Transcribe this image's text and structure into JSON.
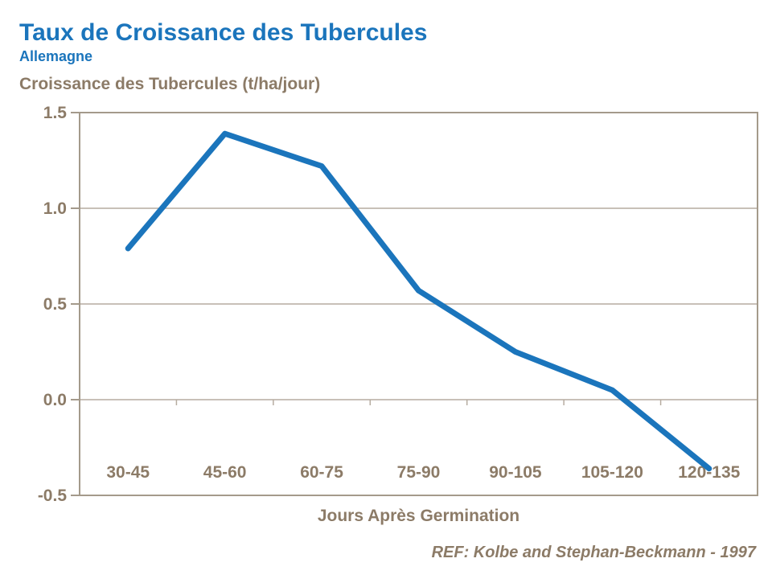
{
  "header": {
    "title": "Taux de Croissance des Tubercules",
    "subtitle": "Allemagne"
  },
  "footer": {
    "reference": "REF: Kolbe and Stephan-Beckmann - 1997"
  },
  "colors": {
    "accent_blue": "#1b75bc",
    "line_blue": "#1b75bc",
    "text_brown": "#8c7b67",
    "gridline": "#b6aca0",
    "axis_border": "#a49a8b"
  },
  "chart_data": {
    "type": "line",
    "title": "Taux de Croissance des Tubercules",
    "subtitle": "Allemagne",
    "ylabel": "Croissance des Tubercules (t/ha/jour)",
    "xlabel": "Jours Après Germination",
    "categories": [
      "30-45",
      "45-60",
      "60-75",
      "75-90",
      "90-105",
      "105-120",
      "120-135"
    ],
    "series": [
      {
        "name": "Croissance des Tubercules",
        "values": [
          0.79,
          1.39,
          1.22,
          0.57,
          0.25,
          0.05,
          -0.36
        ]
      }
    ],
    "ylim": [
      -0.5,
      1.5
    ],
    "yticks": [
      -0.5,
      0.0,
      0.5,
      1.0,
      1.5
    ],
    "ytick_labels": [
      "-0.5",
      "0.0",
      "0.5",
      "1.0",
      "1.5"
    ],
    "grid": "horizontal",
    "legend": "none",
    "category_axis_at": 0.0,
    "reference": "REF: Kolbe and Stephan-Beckmann - 1997"
  }
}
